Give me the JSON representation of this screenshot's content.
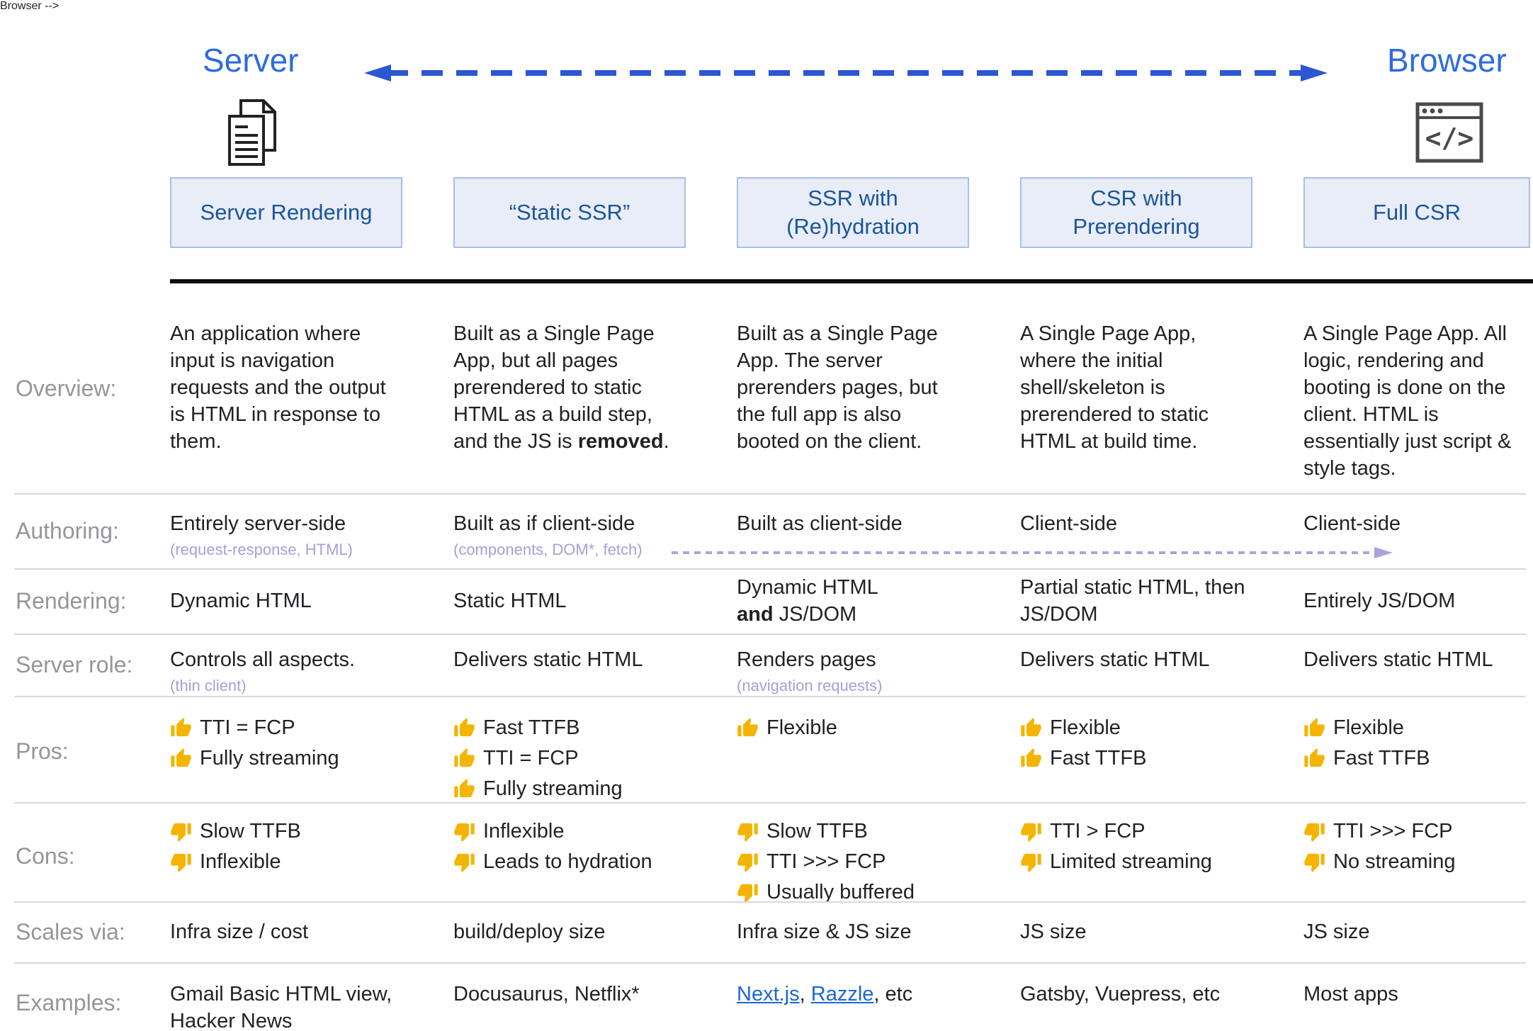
{
  "colors": {
    "accent_blue": "#2d6be0",
    "arrow_blue": "#2b57d2",
    "box_fill": "#e9edf8",
    "box_border": "#a9bfe4",
    "box_text_blue": "#1a559a",
    "note_purple": "#a5a0d8",
    "label_grey": "#94969a",
    "link_blue": "#1a66d6",
    "thumb_gold": "#f4b400"
  },
  "icons": {
    "server": "documents-icon",
    "browser": "browser-window-code-icon",
    "pros": "thumbs-up",
    "cons": "thumbs-down"
  },
  "header": {
    "server_label": "Server",
    "browser_label": "Browser",
    "columns": [
      "Server Rendering",
      "“Static SSR”",
      "SSR with (Re)hydration",
      "CSR with Prerendering",
      "Full CSR"
    ]
  },
  "rows": {
    "overview": {
      "label": "Overview:",
      "cells": [
        {
          "text": "An application where input is navigation requests and the output is HTML in response to them."
        },
        {
          "pre": "Built as a Single Page App, but all pages prerendered to static HTML as a build step, and the JS is ",
          "bold": "removed",
          "post": "."
        },
        {
          "text": "Built as a Single Page App. The server prerenders pages, but the full app is also booted on the client."
        },
        {
          "text": "A Single Page App, where the initial shell/skeleton is prerendered to static HTML at build time."
        },
        {
          "text": "A Single Page App. All logic, rendering and booting is done on the client. HTML is essentially just script & style tags."
        }
      ]
    },
    "authoring": {
      "label": "Authoring:",
      "cells": [
        {
          "main": "Entirely server-side",
          "note": "(request-response, HTML)"
        },
        {
          "main": "Built as if client-side",
          "note": "(components, DOM*, fetch)"
        },
        {
          "main": "Built as client-side"
        },
        {
          "main": "Client-side"
        },
        {
          "main": "Client-side"
        }
      ]
    },
    "rendering": {
      "label": "Rendering:",
      "cells": [
        {
          "main": "Dynamic HTML"
        },
        {
          "main": "Static HTML"
        },
        {
          "line1": "Dynamic HTML",
          "bold": "and",
          "rest": " JS/DOM"
        },
        {
          "main": "Partial static HTML, then JS/DOM"
        },
        {
          "main": "Entirely JS/DOM"
        }
      ]
    },
    "server_role": {
      "label": "Server role:",
      "cells": [
        {
          "main": "Controls all aspects.",
          "note": "(thin client)"
        },
        {
          "main": "Delivers static HTML"
        },
        {
          "main": "Renders pages",
          "note": "(navigation requests)"
        },
        {
          "main": "Delivers static HTML"
        },
        {
          "main": "Delivers static HTML"
        }
      ]
    },
    "pros": {
      "label": "Pros:",
      "cells": [
        {
          "items": [
            "TTI = FCP",
            "Fully streaming"
          ]
        },
        {
          "items": [
            "Fast TTFB",
            "TTI = FCP",
            "Fully streaming"
          ]
        },
        {
          "items": [
            "Flexible"
          ]
        },
        {
          "items": [
            "Flexible",
            "Fast TTFB"
          ]
        },
        {
          "items": [
            "Flexible",
            "Fast TTFB"
          ]
        }
      ]
    },
    "cons": {
      "label": "Cons:",
      "cells": [
        {
          "items": [
            "Slow TTFB",
            "Inflexible"
          ]
        },
        {
          "items": [
            "Inflexible",
            "Leads to hydration"
          ]
        },
        {
          "items": [
            "Slow TTFB",
            "TTI >>> FCP",
            "Usually buffered"
          ]
        },
        {
          "items": [
            "TTI > FCP",
            "Limited streaming"
          ]
        },
        {
          "items": [
            "TTI >>> FCP",
            "No streaming"
          ]
        }
      ]
    },
    "scales_via": {
      "label": "Scales via:",
      "cells": [
        {
          "main": "Infra size / cost"
        },
        {
          "main": "build/deploy size"
        },
        {
          "main": "Infra size & JS size"
        },
        {
          "main": "JS size"
        },
        {
          "main": "JS size"
        }
      ]
    },
    "examples": {
      "label": "Examples:",
      "cells": [
        {
          "main": "Gmail Basic HTML view, Hacker News"
        },
        {
          "main": "Docusaurus, Netflix*"
        },
        {
          "links": [
            "Next.js",
            "Razzle"
          ],
          "sep": ", ",
          "suffix": ", etc"
        },
        {
          "main": "Gatsby, Vuepress, etc"
        },
        {
          "main": "Most apps"
        }
      ]
    }
  }
}
